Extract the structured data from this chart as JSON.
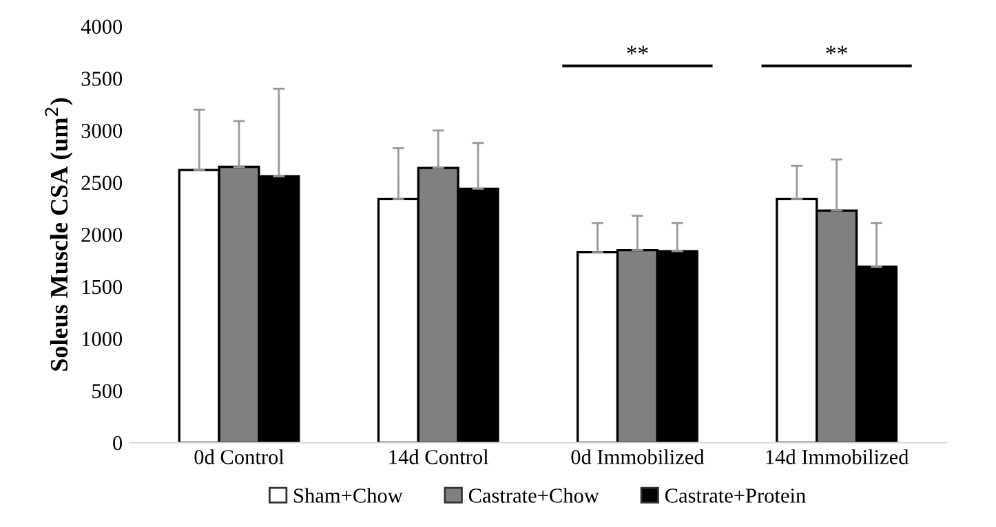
{
  "chart_data": {
    "type": "bar",
    "ylabel": "Soleus Muscle CSA (um$^{2}$)",
    "categories": [
      "0d Control",
      "14d Control",
      "0d Immobilized",
      "14d Immobilized"
    ],
    "series": [
      {
        "name": "Sham+Chow",
        "color": "#ffffff",
        "values": [
          2620,
          2340,
          1830,
          2340
        ],
        "errors": [
          [
            2620,
            3200
          ],
          [
            2340,
            2830
          ],
          [
            1830,
            2110
          ],
          [
            2340,
            2660
          ]
        ]
      },
      {
        "name": "Castrate+Chow",
        "color": "#808080",
        "values": [
          2650,
          2640,
          1850,
          2230
        ],
        "errors": [
          [
            2650,
            3090
          ],
          [
            2640,
            3000
          ],
          [
            1850,
            2180
          ],
          [
            2230,
            2720
          ]
        ]
      },
      {
        "name": "Castrate+Protein",
        "color": "#000000",
        "values": [
          2560,
          2440,
          1840,
          1690
        ],
        "errors": [
          [
            2560,
            3400
          ],
          [
            2440,
            2880
          ],
          [
            1840,
            2110
          ],
          [
            1690,
            2110
          ]
        ]
      }
    ],
    "annotations": [
      "**",
      "**"
    ],
    "ylim": [
      0,
      4000
    ],
    "yticks": [
      0,
      500,
      1000,
      1500,
      2000,
      2500,
      3000,
      3500,
      4000
    ],
    "grid": false,
    "legend": "bottom"
  }
}
